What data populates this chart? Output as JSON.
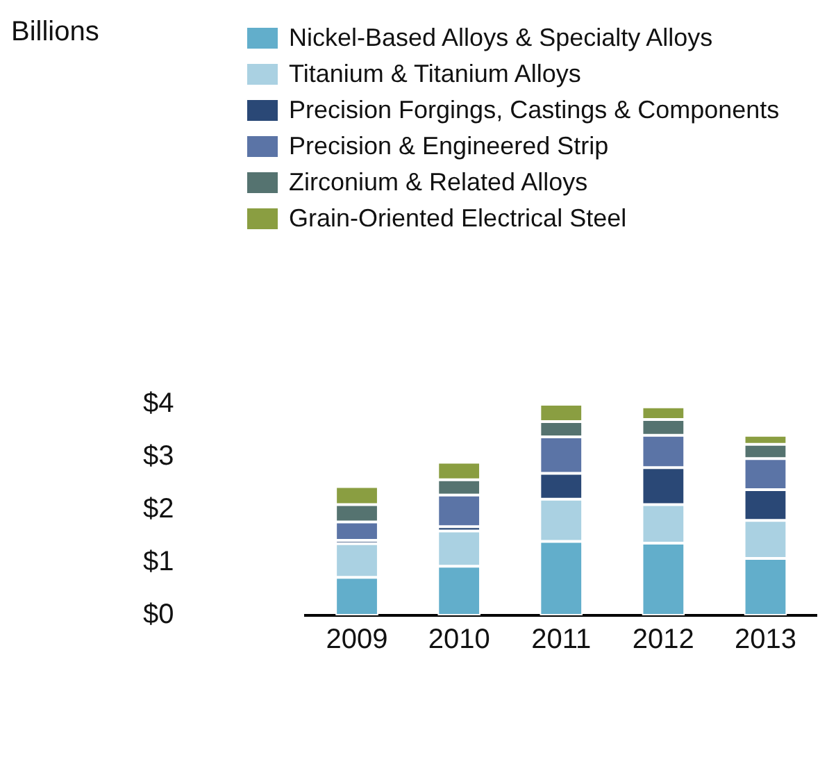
{
  "chart_data": {
    "type": "bar",
    "stacked": true,
    "annotations": [
      "Billions"
    ],
    "legend": "top",
    "categories": [
      "2009",
      "2010",
      "2011",
      "2012",
      "2013"
    ],
    "series": [
      {
        "name": "Nickel-Based Alloys & Specialty Alloys",
        "color": "#62aecb",
        "values": [
          0.72,
          0.93,
          1.4,
          1.37,
          1.08
        ]
      },
      {
        "name": "Titanium & Titanium Alloys",
        "color": "#aad1e2",
        "values": [
          0.64,
          0.67,
          0.8,
          0.73,
          0.72
        ]
      },
      {
        "name": "Precision Forgings, Castings & Components",
        "color": "#2a4876",
        "values": [
          0.06,
          0.08,
          0.49,
          0.7,
          0.58
        ]
      },
      {
        "name": "Precision & Engineered Strip",
        "color": "#5b74a6",
        "values": [
          0.35,
          0.6,
          0.69,
          0.61,
          0.59
        ]
      },
      {
        "name": "Zirconium & Related Alloys",
        "color": "#557370",
        "values": [
          0.33,
          0.29,
          0.29,
          0.3,
          0.27
        ]
      },
      {
        "name": "Grain-Oriented Electrical Steel",
        "color": "#8a9e41",
        "values": [
          0.34,
          0.33,
          0.33,
          0.24,
          0.17
        ]
      }
    ],
    "ylim": [
      0,
      4
    ],
    "yticks": [
      {
        "value": 0,
        "label": "$0"
      },
      {
        "value": 1,
        "label": "$1"
      },
      {
        "value": 2,
        "label": "$2"
      },
      {
        "value": 3,
        "label": "$3"
      },
      {
        "value": 4,
        "label": "$4"
      }
    ]
  }
}
